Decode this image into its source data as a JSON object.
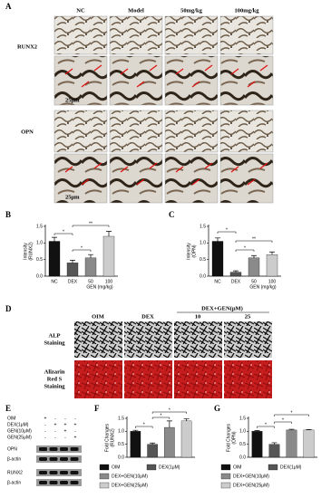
{
  "panel_labels": [
    "A",
    "B",
    "C",
    "D",
    "E",
    "F",
    "G"
  ],
  "figure_a": {
    "columns": [
      "NC",
      "Model",
      "50mg/kg",
      "100mg/kg"
    ],
    "rows": [
      "RUNX2",
      "OPN"
    ],
    "scale_bars": [
      "25μm",
      "25μm"
    ]
  },
  "figure_d": {
    "columns": [
      "OIM",
      "DEX"
    ],
    "group": "DEX+GEN(μM)",
    "group_columns": [
      "10",
      "25"
    ],
    "rows": [
      [
        "ALP",
        "Staining"
      ],
      [
        "Alizarin",
        "Red S",
        "Staining"
      ]
    ]
  },
  "figure_e": {
    "conditions": [
      {
        "label": "OIM",
        "marks": [
          "+",
          "-",
          "-",
          "-"
        ]
      },
      {
        "label": "DEX(1μM)",
        "marks": [
          "-",
          "+",
          "+",
          "+"
        ]
      },
      {
        "label": "GEN(10μM)",
        "marks": [
          "-",
          "-",
          "+",
          "-"
        ]
      },
      {
        "label": "GEN(25μM)",
        "marks": [
          "-",
          "-",
          "-",
          "+"
        ]
      }
    ],
    "bands": [
      "OPN",
      "β-actin",
      "RUNX2",
      "β-actin"
    ]
  },
  "chart_data": [
    {
      "type": "bar",
      "y_label": [
        "Intensity",
        "(RUNX2)"
      ],
      "categories": [
        "NC",
        "DEX",
        "50",
        "100"
      ],
      "x_sublabel": "GEN (mg/kg)",
      "values": [
        1.05,
        0.4,
        0.55,
        1.2
      ],
      "errors": [
        0.12,
        0.08,
        0.1,
        0.15
      ],
      "colors": [
        "#111111",
        "#555555",
        "#8a8a8a",
        "#cccccc"
      ],
      "ylim": [
        0,
        1.5
      ],
      "yticks": [
        {
          "value": 0,
          "label": "0.0"
        },
        {
          "value": 0.5,
          "label": "0.5"
        },
        {
          "value": 1,
          "label": "1.0"
        },
        {
          "value": 1.5,
          "label": "1.5"
        }
      ],
      "annotations": [
        "*",
        "**",
        "*"
      ]
    },
    {
      "type": "bar",
      "y_label": [
        "Intensity",
        "(OPN)"
      ],
      "categories": [
        "NC",
        "DEX",
        "50",
        "100"
      ],
      "x_sublabel": "GEN (mg/kg)",
      "values": [
        1.05,
        0.12,
        0.55,
        0.65
      ],
      "errors": [
        0.1,
        0.04,
        0.07,
        0.08
      ],
      "colors": [
        "#111111",
        "#555555",
        "#8a8a8a",
        "#cccccc"
      ],
      "ylim": [
        0,
        1.5
      ],
      "yticks": [
        {
          "value": 0,
          "label": "0.0"
        },
        {
          "value": 0.5,
          "label": "0.5"
        },
        {
          "value": 1,
          "label": "1.0"
        },
        {
          "value": 1.5,
          "label": "1.5"
        }
      ],
      "annotations": [
        "*",
        "**",
        "*"
      ]
    },
    {
      "type": "bar",
      "y_label": [
        "Fold Changes",
        "(RUNX2)"
      ],
      "series": [
        {
          "name": "OIM",
          "color": "#111111",
          "values": [
            1.0
          ],
          "errors": [
            0.04
          ]
        },
        {
          "name": "DEX(1μM)",
          "color": "#555555",
          "values": [
            0.5
          ],
          "errors": [
            0.05
          ]
        },
        {
          "name": "DEX+GEN(10μM)",
          "color": "#8a8a8a",
          "values": [
            1.15
          ],
          "errors": [
            0.25
          ]
        },
        {
          "name": "DEX+GEN(25μM)",
          "color": "#cccccc",
          "values": [
            1.4
          ],
          "errors": [
            0.08
          ]
        }
      ],
      "ylim": [
        0,
        1.5
      ],
      "yticks": [
        {
          "value": 0,
          "label": "0.0"
        },
        {
          "value": 0.5,
          "label": "0.5"
        },
        {
          "value": 1,
          "label": "1.0"
        },
        {
          "value": 1.5,
          "label": "1.5"
        }
      ],
      "annotations": [
        "*",
        "*",
        "*"
      ]
    },
    {
      "type": "bar",
      "y_label": [
        "Fold Changes",
        "(OPN)"
      ],
      "series": [
        {
          "name": "OIM",
          "color": "#111111",
          "values": [
            1.0
          ],
          "errors": [
            0.03
          ]
        },
        {
          "name": "DEX(1μM)",
          "color": "#555555",
          "values": [
            0.5
          ],
          "errors": [
            0.06
          ]
        },
        {
          "name": "DEX+GEN(10μM)",
          "color": "#8a8a8a",
          "values": [
            1.05
          ],
          "errors": [
            0.03
          ]
        },
        {
          "name": "DEX+GEN(25μM)",
          "color": "#cccccc",
          "values": [
            1.05
          ],
          "errors": [
            0.02
          ]
        }
      ],
      "ylim": [
        0,
        1.5
      ],
      "yticks": [
        {
          "value": 0,
          "label": "0.0"
        },
        {
          "value": 0.5,
          "label": "0.5"
        },
        {
          "value": 1,
          "label": "1.0"
        },
        {
          "value": 1.5,
          "label": "1.5"
        }
      ],
      "annotations": [
        "*",
        "*",
        "*"
      ]
    }
  ]
}
